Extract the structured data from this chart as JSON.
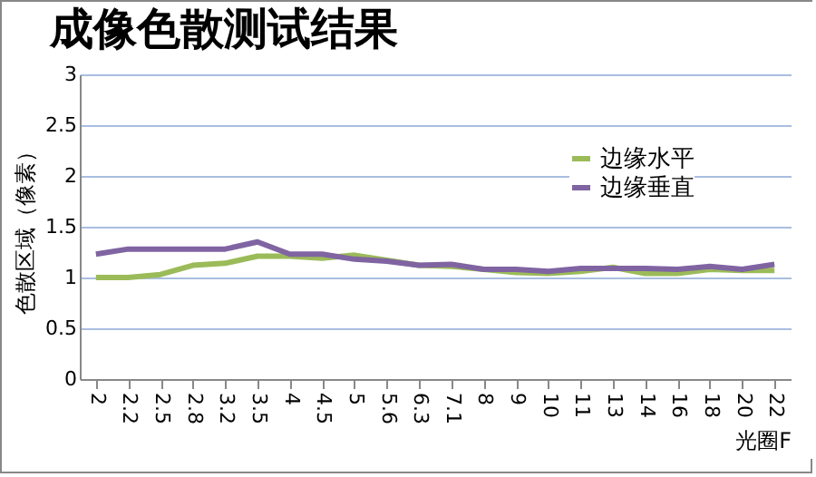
{
  "chart_data": {
    "type": "line",
    "title": "成像色散测试结果",
    "xlabel": "光圈F",
    "ylabel": "色散区域（像素）",
    "categories": [
      "2",
      "2.2",
      "2.5",
      "2.8",
      "3.2",
      "3.5",
      "4",
      "4.5",
      "5",
      "5.6",
      "6.3",
      "7.1",
      "8",
      "9",
      "10",
      "11",
      "13",
      "14",
      "16",
      "18",
      "20",
      "22"
    ],
    "series": [
      {
        "name": "边缘水平",
        "color": "#9bbb59",
        "values": [
          1.0,
          1.0,
          1.03,
          1.12,
          1.14,
          1.21,
          1.21,
          1.19,
          1.22,
          1.17,
          1.12,
          1.11,
          1.08,
          1.05,
          1.04,
          1.06,
          1.1,
          1.04,
          1.04,
          1.08,
          1.07,
          1.07
        ]
      },
      {
        "name": "边缘垂直",
        "color": "#8064a2",
        "values": [
          1.23,
          1.28,
          1.28,
          1.28,
          1.28,
          1.35,
          1.23,
          1.23,
          1.18,
          1.16,
          1.12,
          1.13,
          1.08,
          1.08,
          1.06,
          1.09,
          1.09,
          1.09,
          1.08,
          1.11,
          1.08,
          1.13
        ]
      }
    ],
    "ylim": [
      0,
      3
    ],
    "yticks": [
      0,
      0.5,
      1,
      1.5,
      2,
      2.5,
      3
    ],
    "grid": "y",
    "legend": "top right",
    "marker": "none",
    "line_style": "solid"
  }
}
